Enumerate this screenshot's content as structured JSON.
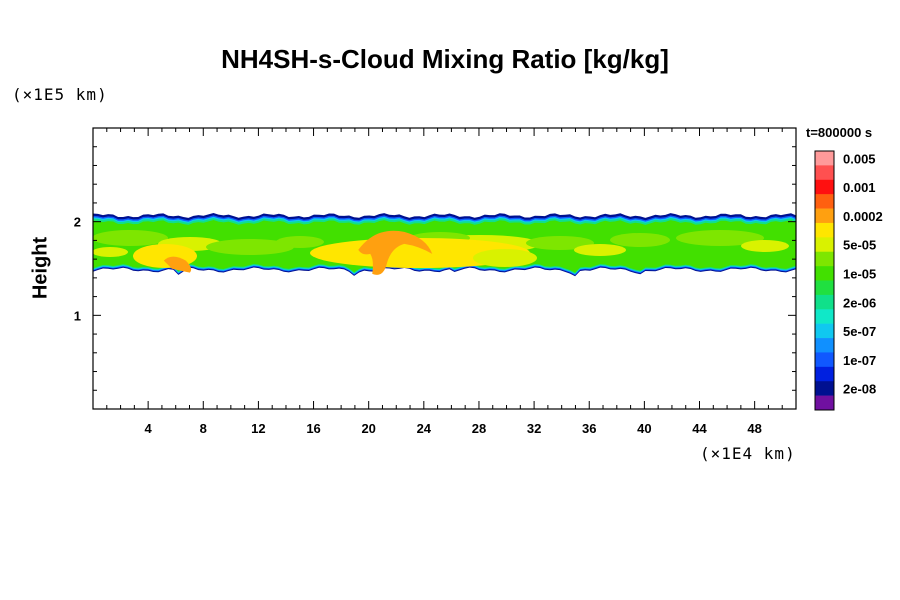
{
  "chart_data": {
    "type": "heatmap",
    "title": "NH4SH-s-Cloud Mixing Ratio [kg/kg]",
    "ylabel": "Height",
    "xunit": "(×1E4 km)",
    "yunit": "(×1E5 km)",
    "time_label": "t=800000 s",
    "xlim": [
      0,
      51
    ],
    "ylim": [
      0,
      3
    ],
    "x_ticks": [
      4,
      8,
      12,
      16,
      20,
      24,
      28,
      32,
      36,
      40,
      44,
      48
    ],
    "y_ticks": [
      1,
      2
    ],
    "colorbar": {
      "levels": [
        {
          "label": "0.005",
          "color": "#ff9a9a"
        },
        {
          "label": "",
          "color": "#ff5050"
        },
        {
          "label": "0.001",
          "color": "#ff1010"
        },
        {
          "label": "",
          "color": "#ff6010"
        },
        {
          "label": "0.0002",
          "color": "#ffa010"
        },
        {
          "label": "",
          "color": "#ffe600"
        },
        {
          "label": "5e-05",
          "color": "#d9f200"
        },
        {
          "label": "",
          "color": "#7ee600"
        },
        {
          "label": "1e-05",
          "color": "#42e000"
        },
        {
          "label": "",
          "color": "#20e040"
        },
        {
          "label": "2e-06",
          "color": "#10e08a"
        },
        {
          "label": "",
          "color": "#10e8c8"
        },
        {
          "label": "5e-07",
          "color": "#10c8f0"
        },
        {
          "label": "",
          "color": "#1090ff"
        },
        {
          "label": "1e-07",
          "color": "#1058ff"
        },
        {
          "label": "",
          "color": "#0020e0"
        },
        {
          "label": "2e-08",
          "color": "#001090"
        },
        {
          "label": "",
          "color": "#7010a0"
        }
      ]
    },
    "cloud_layer": {
      "bottom_height": 1.5,
      "top_height": 2.05,
      "orange_cores": [
        {
          "x": 6.3,
          "y": 1.52
        },
        {
          "x": 22.0,
          "y": 1.72
        }
      ]
    }
  }
}
